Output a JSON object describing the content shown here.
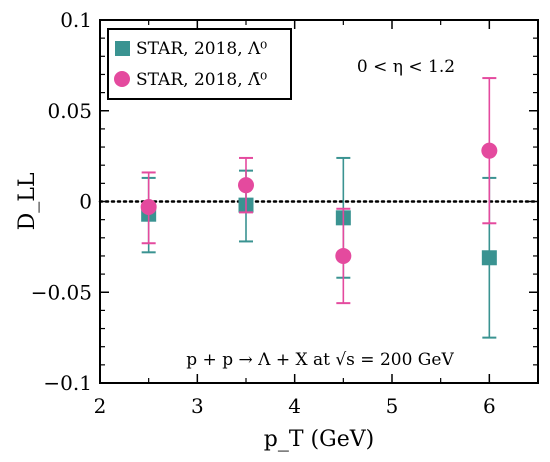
{
  "chart_data": {
    "type": "scatter",
    "xlabel": "p_T (GeV)",
    "ylabel": "D_LL",
    "xlim": [
      2,
      6.5
    ],
    "ylim": [
      -0.1,
      0.1
    ],
    "x_ticks": [
      2,
      3,
      4,
      5,
      6
    ],
    "x_tick_labels": [
      "2",
      "3",
      "4",
      "5",
      "6"
    ],
    "y_ticks": [
      -0.1,
      -0.05,
      0,
      0.05,
      0.1
    ],
    "y_tick_labels": [
      "−0.1",
      "−0.05",
      "0",
      "0.05",
      "0.1"
    ],
    "reference_line": {
      "y": 0,
      "style": "dotted"
    },
    "annotations": [
      {
        "text": "0 < η < 1.2",
        "position": "top-right"
      },
      {
        "text": "p + p → Λ + X at √s = 200 GeV",
        "position": "bottom-center"
      }
    ],
    "legend": {
      "placement": "top-left"
    },
    "series": [
      {
        "name": "STAR, 2018, Λ⁰",
        "marker": "square",
        "color": "#3a9391",
        "x": [
          2.5,
          3.5,
          4.5,
          6.0
        ],
        "y": [
          -0.007,
          -0.002,
          -0.009,
          -0.031
        ],
        "err_low": [
          0.021,
          0.02,
          0.033,
          0.044
        ],
        "err_high": [
          0.02,
          0.019,
          0.033,
          0.044
        ]
      },
      {
        "name": "STAR, 2018, Λ̄⁰",
        "marker": "circle",
        "color": "#e44a9e",
        "x": [
          2.5,
          3.5,
          4.5,
          6.0
        ],
        "y": [
          -0.003,
          0.009,
          -0.03,
          0.028
        ],
        "err_low": [
          0.02,
          0.015,
          0.026,
          0.04
        ],
        "err_high": [
          0.019,
          0.015,
          0.026,
          0.04
        ]
      }
    ]
  }
}
